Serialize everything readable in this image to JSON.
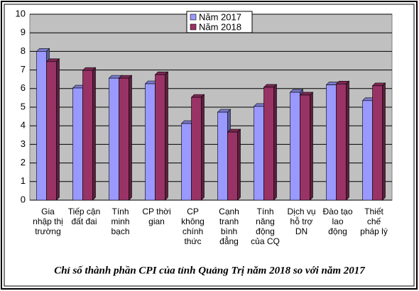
{
  "chart_data": {
    "type": "bar",
    "caption": "Chỉ số thành phần CPI của tỉnh Quảng Trị năm 2018 so với năm 2017",
    "categories": [
      "Gia nhập thị trường",
      "Tiếp cận đất đai",
      "Tính minh bạch",
      "CP thời gian",
      "CP không chính thức",
      "Cạnh tranh bình đẳng",
      "Tính năng động của CQ",
      "Dịch vụ hỗ trợ DN",
      "Đào tạo lao động",
      "Thiết chế pháp lý"
    ],
    "series": [
      {
        "name": "Năm 2017",
        "color": "#9999ff",
        "values": [
          8.0,
          6.03,
          6.56,
          6.26,
          4.12,
          4.73,
          5.04,
          5.8,
          6.2,
          5.35
        ]
      },
      {
        "name": "Năm 2018",
        "color": "#993366",
        "values": [
          7.45,
          6.98,
          6.56,
          6.75,
          5.53,
          3.66,
          6.07,
          5.65,
          6.25,
          6.15
        ]
      }
    ],
    "ylim": [
      0,
      10
    ],
    "yticks": [
      0,
      1,
      2,
      3,
      4,
      5,
      6,
      7,
      8,
      9,
      10
    ],
    "grid": true
  }
}
